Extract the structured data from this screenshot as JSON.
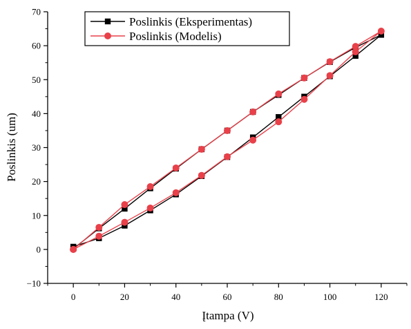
{
  "chart_data": {
    "type": "line",
    "title": "",
    "xlabel": "Įtampa (V)",
    "ylabel": "Poslinkis (um)",
    "xlim": [
      -10,
      130
    ],
    "ylim": [
      -10,
      70
    ],
    "x_ticks": [
      0,
      20,
      40,
      60,
      80,
      100,
      120
    ],
    "y_ticks": [
      -10,
      0,
      10,
      20,
      30,
      40,
      50,
      60,
      70
    ],
    "grid": false,
    "legend_position": "top-left",
    "series": [
      {
        "name": "Poslinkis (Eksperimentas)",
        "color": "#000000",
        "marker": "square",
        "x": [
          0,
          10,
          20,
          30,
          40,
          50,
          60,
          70,
          80,
          90,
          100,
          110,
          120,
          110,
          100,
          90,
          80,
          70,
          60,
          50,
          40,
          30,
          20,
          10,
          0
        ],
        "y": [
          0.8,
          3.3,
          7.0,
          11.5,
          16.2,
          21.6,
          27.2,
          33.0,
          39.0,
          45.0,
          51.0,
          57.0,
          63.2,
          59.5,
          55.2,
          50.5,
          45.5,
          40.5,
          35.0,
          29.5,
          23.8,
          18.0,
          12.0,
          6.2,
          0.2
        ]
      },
      {
        "name": "Poslinkis (Modelis)",
        "color": "#e8414a",
        "marker": "circle",
        "x": [
          0,
          10,
          20,
          30,
          40,
          50,
          60,
          70,
          80,
          90,
          100,
          110,
          120,
          110,
          100,
          90,
          80,
          70,
          60,
          50,
          40,
          30,
          20,
          10,
          0
        ],
        "y": [
          0.0,
          3.9,
          8.0,
          12.2,
          16.7,
          21.8,
          27.3,
          32.2,
          37.6,
          44.2,
          51.2,
          58.2,
          64.3,
          59.8,
          55.3,
          50.5,
          45.8,
          40.5,
          35.0,
          29.5,
          24.0,
          18.5,
          13.2,
          6.5,
          0.0
        ]
      }
    ]
  }
}
